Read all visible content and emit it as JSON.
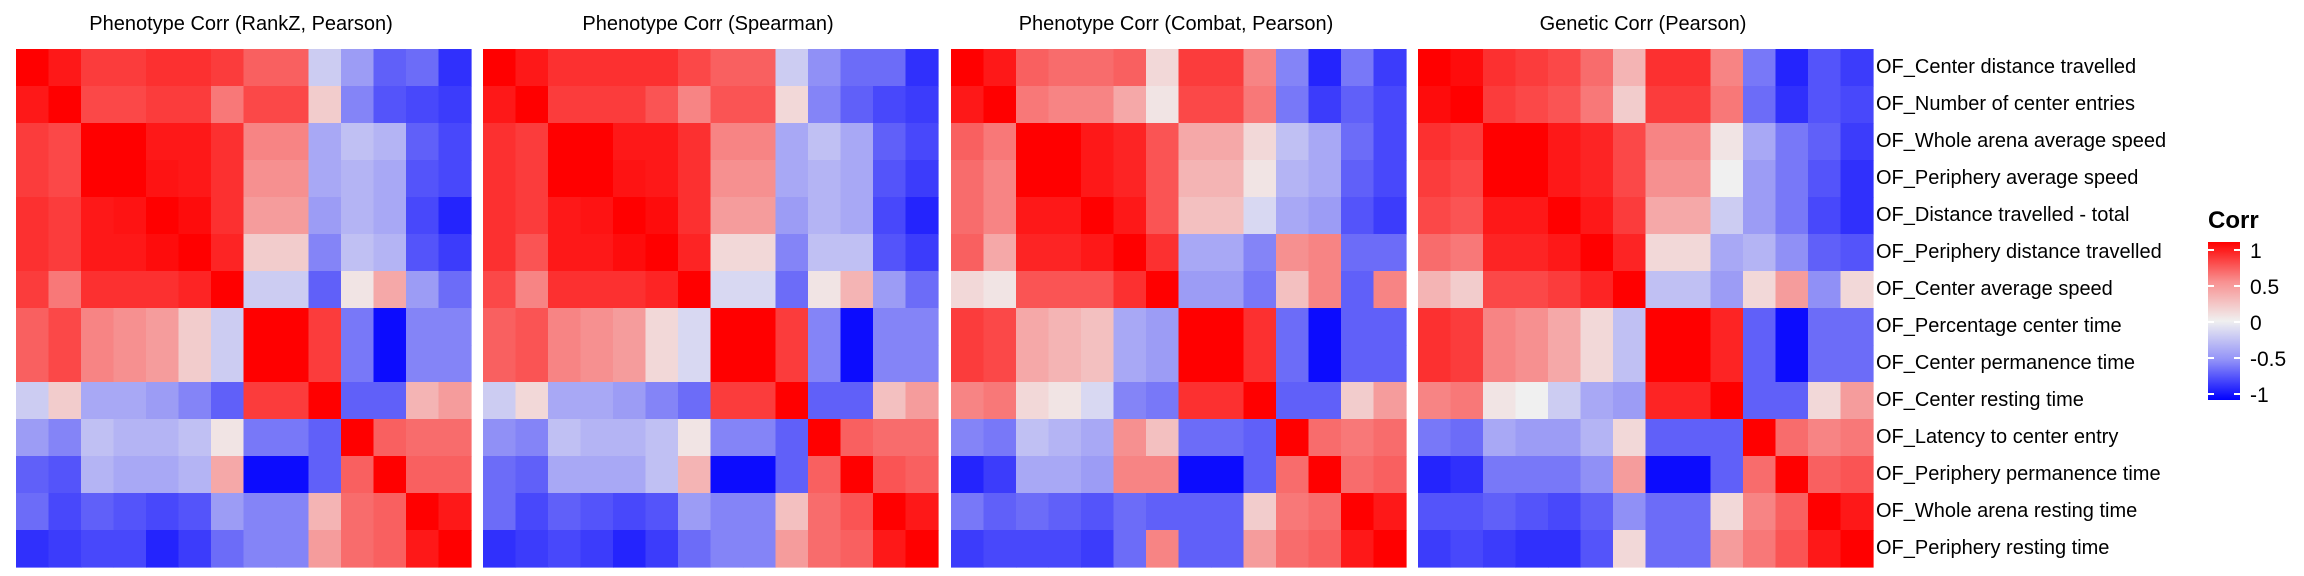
{
  "chart_data": {
    "type": "heatmap",
    "panel_titles": [
      "Phenotype Corr (RankZ, Pearson)",
      "Phenotype Corr (Spearman)",
      "Phenotype Corr (Combat, Pearson)",
      "Genetic Corr  (Pearson)"
    ],
    "row_labels": [
      "OF_Center distance travelled",
      "OF_Number of center entries",
      "OF_Whole arena average speed",
      "OF_Periphery average speed",
      "OF_Distance travelled - total",
      "OF_Periphery distance travelled",
      "OF_Center average speed",
      "OF_Percentage center time",
      "OF_Center permanence time",
      "OF_Center resting time",
      "OF_Latency to center entry",
      "OF_Periphery permanence time",
      "OF_Whole arena resting time",
      "OF_Periphery resting time"
    ],
    "legend": {
      "title": "Corr",
      "ticks": [
        "1",
        "0.5",
        "0",
        "-0.5",
        "-1"
      ],
      "tick_values": [
        1,
        0.5,
        0,
        -0.5,
        -1
      ],
      "colors": {
        "high": "#ff0000",
        "mid": "#f0f0f0",
        "low": "#0000ff"
      }
    },
    "panels": [
      {
        "title": "Phenotype Corr (RankZ, Pearson)",
        "matrix": [
          [
            1,
            0.9,
            0.75,
            0.75,
            0.8,
            0.8,
            0.75,
            0.6,
            0.6,
            -0.15,
            -0.35,
            -0.6,
            -0.55,
            -0.8
          ],
          [
            0.9,
            1,
            0.7,
            0.7,
            0.75,
            0.75,
            0.5,
            0.7,
            0.7,
            0.15,
            -0.45,
            -0.65,
            -0.7,
            -0.75
          ],
          [
            0.75,
            0.7,
            1,
            1,
            0.9,
            0.9,
            0.8,
            0.45,
            0.45,
            -0.3,
            -0.2,
            -0.25,
            -0.6,
            -0.7
          ],
          [
            0.75,
            0.7,
            1,
            1,
            0.92,
            0.9,
            0.8,
            0.4,
            0.4,
            -0.3,
            -0.25,
            -0.3,
            -0.65,
            -0.7
          ],
          [
            0.8,
            0.75,
            0.9,
            0.92,
            1,
            0.95,
            0.8,
            0.35,
            0.35,
            -0.35,
            -0.25,
            -0.3,
            -0.7,
            -0.85
          ],
          [
            0.8,
            0.75,
            0.9,
            0.9,
            0.95,
            1,
            0.85,
            0.15,
            0.15,
            -0.45,
            -0.2,
            -0.25,
            -0.65,
            -0.75
          ],
          [
            0.75,
            0.5,
            0.8,
            0.8,
            0.8,
            0.85,
            1,
            -0.15,
            -0.15,
            -0.6,
            0.05,
            0.3,
            -0.35,
            -0.55
          ],
          [
            0.6,
            0.7,
            0.45,
            0.4,
            0.35,
            0.15,
            -0.15,
            1,
            1,
            0.75,
            -0.5,
            -0.95,
            -0.45,
            -0.45
          ],
          [
            0.6,
            0.7,
            0.45,
            0.4,
            0.35,
            0.15,
            -0.15,
            1,
            1,
            0.75,
            -0.5,
            -0.95,
            -0.45,
            -0.45
          ],
          [
            -0.15,
            0.15,
            -0.3,
            -0.3,
            -0.35,
            -0.45,
            -0.6,
            0.75,
            0.75,
            1,
            -0.6,
            -0.6,
            0.25,
            0.35
          ],
          [
            -0.35,
            -0.45,
            -0.2,
            -0.25,
            -0.25,
            -0.2,
            0.05,
            -0.5,
            -0.5,
            -0.6,
            1,
            0.6,
            0.55,
            0.55
          ],
          [
            -0.6,
            -0.65,
            -0.25,
            -0.3,
            -0.3,
            -0.25,
            0.3,
            -0.95,
            -0.95,
            -0.6,
            0.6,
            1,
            0.6,
            0.6
          ],
          [
            -0.55,
            -0.7,
            -0.6,
            -0.65,
            -0.7,
            -0.65,
            -0.35,
            -0.45,
            -0.45,
            0.25,
            0.55,
            0.6,
            1,
            0.9
          ],
          [
            -0.8,
            -0.75,
            -0.7,
            -0.7,
            -0.85,
            -0.75,
            -0.55,
            -0.45,
            -0.45,
            0.35,
            0.55,
            0.6,
            0.9,
            1
          ]
        ]
      },
      {
        "title": "Phenotype Corr (Spearman)",
        "matrix": [
          [
            1,
            0.9,
            0.8,
            0.8,
            0.8,
            0.8,
            0.7,
            0.6,
            0.6,
            -0.15,
            -0.4,
            -0.55,
            -0.55,
            -0.8
          ],
          [
            0.9,
            1,
            0.75,
            0.75,
            0.75,
            0.65,
            0.45,
            0.65,
            0.65,
            0.1,
            -0.45,
            -0.6,
            -0.7,
            -0.75
          ],
          [
            0.8,
            0.75,
            1,
            1,
            0.9,
            0.9,
            0.8,
            0.45,
            0.45,
            -0.3,
            -0.2,
            -0.3,
            -0.6,
            -0.7
          ],
          [
            0.8,
            0.75,
            1,
            1,
            0.92,
            0.9,
            0.8,
            0.4,
            0.4,
            -0.3,
            -0.25,
            -0.3,
            -0.65,
            -0.75
          ],
          [
            0.8,
            0.75,
            0.9,
            0.92,
            1,
            0.95,
            0.8,
            0.35,
            0.35,
            -0.35,
            -0.25,
            -0.3,
            -0.7,
            -0.85
          ],
          [
            0.8,
            0.65,
            0.9,
            0.9,
            0.95,
            1,
            0.85,
            0.1,
            0.1,
            -0.45,
            -0.2,
            -0.2,
            -0.65,
            -0.75
          ],
          [
            0.7,
            0.45,
            0.8,
            0.8,
            0.8,
            0.85,
            1,
            -0.1,
            -0.1,
            -0.55,
            0.05,
            0.25,
            -0.35,
            -0.55
          ],
          [
            0.6,
            0.65,
            0.45,
            0.4,
            0.35,
            0.1,
            -0.1,
            1,
            1,
            0.75,
            -0.45,
            -0.95,
            -0.45,
            -0.45
          ],
          [
            0.6,
            0.65,
            0.45,
            0.4,
            0.35,
            0.1,
            -0.1,
            1,
            1,
            0.75,
            -0.45,
            -0.95,
            -0.45,
            -0.45
          ],
          [
            -0.15,
            0.1,
            -0.3,
            -0.3,
            -0.35,
            -0.45,
            -0.55,
            0.75,
            0.75,
            1,
            -0.6,
            -0.6,
            0.2,
            0.35
          ],
          [
            -0.4,
            -0.45,
            -0.2,
            -0.25,
            -0.25,
            -0.2,
            0.05,
            -0.45,
            -0.45,
            -0.6,
            1,
            0.6,
            0.55,
            0.55
          ],
          [
            -0.55,
            -0.6,
            -0.3,
            -0.3,
            -0.3,
            -0.2,
            0.25,
            -0.95,
            -0.95,
            -0.6,
            0.6,
            1,
            0.65,
            0.6
          ],
          [
            -0.55,
            -0.7,
            -0.6,
            -0.65,
            -0.7,
            -0.65,
            -0.35,
            -0.45,
            -0.45,
            0.2,
            0.55,
            0.65,
            1,
            0.9
          ],
          [
            -0.8,
            -0.75,
            -0.7,
            -0.75,
            -0.85,
            -0.75,
            -0.55,
            -0.45,
            -0.45,
            0.35,
            0.55,
            0.6,
            0.9,
            1
          ]
        ]
      },
      {
        "title": "Phenotype Corr (Combat, Pearson)",
        "matrix": [
          [
            1,
            0.9,
            0.6,
            0.55,
            0.55,
            0.6,
            0.1,
            0.75,
            0.75,
            0.45,
            -0.45,
            -0.85,
            -0.5,
            -0.75
          ],
          [
            0.9,
            1,
            0.5,
            0.45,
            0.45,
            0.3,
            0.05,
            0.7,
            0.7,
            0.5,
            -0.5,
            -0.75,
            -0.6,
            -0.7
          ],
          [
            0.6,
            0.5,
            1,
            1,
            0.9,
            0.85,
            0.65,
            0.3,
            0.3,
            0.1,
            -0.2,
            -0.3,
            -0.55,
            -0.7
          ],
          [
            0.55,
            0.45,
            1,
            1,
            0.9,
            0.85,
            0.65,
            0.25,
            0.25,
            0.05,
            -0.25,
            -0.3,
            -0.6,
            -0.7
          ],
          [
            0.55,
            0.45,
            0.9,
            0.9,
            1,
            0.9,
            0.65,
            0.2,
            0.2,
            -0.1,
            -0.3,
            -0.35,
            -0.65,
            -0.75
          ],
          [
            0.6,
            0.3,
            0.85,
            0.85,
            0.9,
            1,
            0.8,
            -0.3,
            -0.3,
            -0.45,
            0.4,
            0.45,
            -0.55,
            -0.55
          ],
          [
            0.1,
            0.05,
            0.65,
            0.65,
            0.65,
            0.8,
            1,
            -0.35,
            -0.35,
            -0.5,
            0.2,
            0.45,
            -0.6,
            0.45
          ],
          [
            0.75,
            0.7,
            0.3,
            0.25,
            0.2,
            -0.3,
            -0.35,
            1,
            1,
            0.8,
            -0.55,
            -0.95,
            -0.6,
            -0.6
          ],
          [
            0.75,
            0.7,
            0.3,
            0.25,
            0.2,
            -0.3,
            -0.35,
            1,
            1,
            0.8,
            -0.55,
            -0.95,
            -0.6,
            -0.6
          ],
          [
            0.45,
            0.5,
            0.1,
            0.05,
            -0.1,
            -0.45,
            -0.5,
            0.8,
            0.8,
            1,
            -0.6,
            -0.6,
            0.15,
            0.35
          ],
          [
            -0.45,
            -0.5,
            -0.2,
            -0.25,
            -0.3,
            0.4,
            0.2,
            -0.55,
            -0.55,
            -0.6,
            1,
            0.55,
            0.5,
            0.55
          ],
          [
            -0.85,
            -0.75,
            -0.3,
            -0.3,
            -0.35,
            0.45,
            0.45,
            -0.95,
            -0.95,
            -0.6,
            0.55,
            1,
            0.55,
            0.6
          ],
          [
            -0.5,
            -0.6,
            -0.55,
            -0.6,
            -0.65,
            -0.55,
            -0.6,
            -0.6,
            -0.6,
            0.15,
            0.5,
            0.55,
            1,
            0.9
          ],
          [
            -0.75,
            -0.7,
            -0.7,
            -0.7,
            -0.75,
            -0.55,
            0.45,
            -0.6,
            -0.6,
            0.35,
            0.55,
            0.6,
            0.9,
            1
          ]
        ]
      },
      {
        "title": "Genetic Corr  (Pearson)",
        "matrix": [
          [
            1,
            0.95,
            0.8,
            0.75,
            0.7,
            0.55,
            0.25,
            0.8,
            0.8,
            0.45,
            -0.5,
            -0.85,
            -0.65,
            -0.75
          ],
          [
            0.95,
            1,
            0.75,
            0.7,
            0.65,
            0.5,
            0.15,
            0.75,
            0.75,
            0.5,
            -0.55,
            -0.8,
            -0.65,
            -0.7
          ],
          [
            0.8,
            0.75,
            1,
            1,
            0.9,
            0.85,
            0.7,
            0.45,
            0.45,
            0.05,
            -0.3,
            -0.5,
            -0.6,
            -0.75
          ],
          [
            0.75,
            0.7,
            1,
            1,
            0.9,
            0.85,
            0.7,
            0.4,
            0.4,
            0.0,
            -0.35,
            -0.5,
            -0.65,
            -0.8
          ],
          [
            0.7,
            0.65,
            0.9,
            0.9,
            1,
            0.9,
            0.75,
            0.3,
            0.3,
            -0.15,
            -0.35,
            -0.5,
            -0.7,
            -0.8
          ],
          [
            0.55,
            0.5,
            0.85,
            0.85,
            0.9,
            1,
            0.85,
            0.1,
            0.1,
            -0.3,
            -0.25,
            -0.4,
            -0.6,
            -0.65
          ],
          [
            0.25,
            0.15,
            0.7,
            0.7,
            0.75,
            0.85,
            1,
            -0.2,
            -0.2,
            -0.35,
            0.1,
            0.35,
            -0.4,
            0.1
          ],
          [
            0.8,
            0.75,
            0.45,
            0.4,
            0.3,
            0.1,
            -0.2,
            1,
            1,
            0.85,
            -0.6,
            -0.95,
            -0.55,
            -0.55
          ],
          [
            0.8,
            0.75,
            0.45,
            0.4,
            0.3,
            0.1,
            -0.2,
            1,
            1,
            0.85,
            -0.6,
            -0.95,
            -0.55,
            -0.55
          ],
          [
            0.45,
            0.5,
            0.05,
            0.0,
            -0.15,
            -0.3,
            -0.35,
            0.85,
            0.85,
            1,
            -0.6,
            -0.6,
            0.1,
            0.35
          ],
          [
            -0.5,
            -0.55,
            -0.3,
            -0.35,
            -0.35,
            -0.25,
            0.1,
            -0.6,
            -0.6,
            -0.6,
            1,
            0.55,
            0.45,
            0.5
          ],
          [
            -0.85,
            -0.8,
            -0.5,
            -0.5,
            -0.5,
            -0.4,
            0.35,
            -0.95,
            -0.95,
            -0.6,
            0.55,
            1,
            0.6,
            0.65
          ],
          [
            -0.65,
            -0.65,
            -0.6,
            -0.65,
            -0.7,
            -0.6,
            -0.4,
            -0.55,
            -0.55,
            0.1,
            0.45,
            0.6,
            1,
            0.9
          ],
          [
            -0.75,
            -0.7,
            -0.75,
            -0.8,
            -0.8,
            -0.65,
            0.1,
            -0.55,
            -0.55,
            0.35,
            0.5,
            0.65,
            0.9,
            1
          ]
        ]
      }
    ]
  }
}
